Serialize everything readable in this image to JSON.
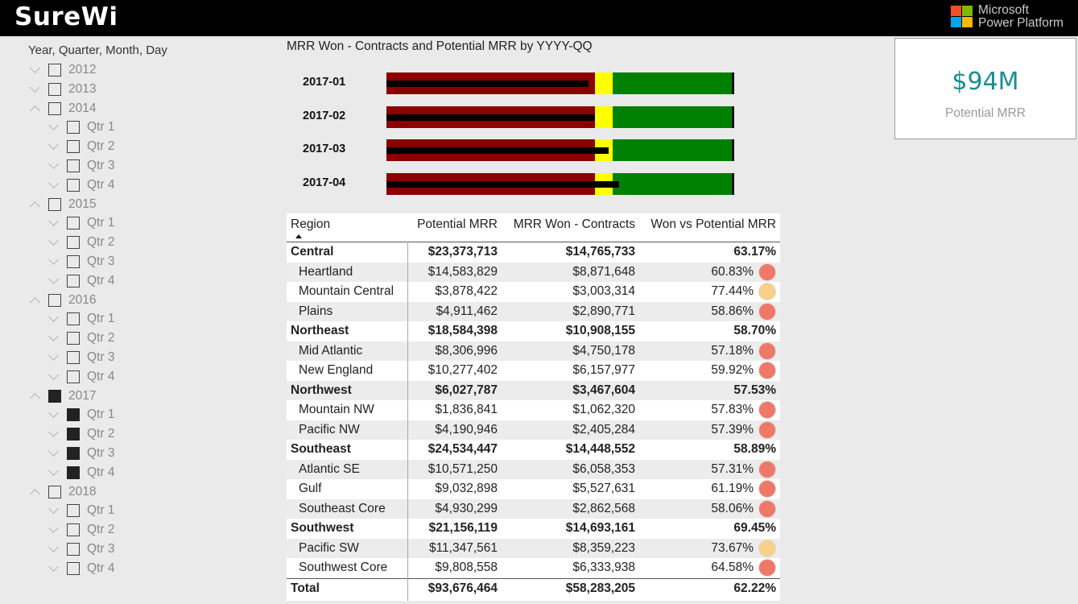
{
  "header": {
    "brand": "SureWi",
    "platform_line1": "Microsoft",
    "platform_line2": "Power Platform",
    "logo_colors": [
      "#f25022",
      "#7fba00",
      "#00a4ef",
      "#ffb900"
    ]
  },
  "slicer": {
    "title": "Year, Quarter, Month, Day",
    "items": [
      {
        "label": "2012",
        "level": 0,
        "expanded": false,
        "checked": false
      },
      {
        "label": "2013",
        "level": 0,
        "expanded": false,
        "checked": false
      },
      {
        "label": "2014",
        "level": 0,
        "expanded": true,
        "checked": false
      },
      {
        "label": "Qtr 1",
        "level": 1,
        "expanded": false,
        "checked": false
      },
      {
        "label": "Qtr 2",
        "level": 1,
        "expanded": false,
        "checked": false
      },
      {
        "label": "Qtr 3",
        "level": 1,
        "expanded": false,
        "checked": false
      },
      {
        "label": "Qtr 4",
        "level": 1,
        "expanded": false,
        "checked": false
      },
      {
        "label": "2015",
        "level": 0,
        "expanded": true,
        "checked": false
      },
      {
        "label": "Qtr 1",
        "level": 1,
        "expanded": false,
        "checked": false
      },
      {
        "label": "Qtr 2",
        "level": 1,
        "expanded": false,
        "checked": false
      },
      {
        "label": "Qtr 3",
        "level": 1,
        "expanded": false,
        "checked": false
      },
      {
        "label": "Qtr 4",
        "level": 1,
        "expanded": false,
        "checked": false
      },
      {
        "label": "2016",
        "level": 0,
        "expanded": true,
        "checked": false
      },
      {
        "label": "Qtr 1",
        "level": 1,
        "expanded": false,
        "checked": false
      },
      {
        "label": "Qtr 2",
        "level": 1,
        "expanded": false,
        "checked": false
      },
      {
        "label": "Qtr 3",
        "level": 1,
        "expanded": false,
        "checked": false
      },
      {
        "label": "Qtr 4",
        "level": 1,
        "expanded": false,
        "checked": false
      },
      {
        "label": "2017",
        "level": 0,
        "expanded": true,
        "checked": true
      },
      {
        "label": "Qtr 1",
        "level": 1,
        "expanded": false,
        "checked": true
      },
      {
        "label": "Qtr 2",
        "level": 1,
        "expanded": false,
        "checked": true
      },
      {
        "label": "Qtr 3",
        "level": 1,
        "expanded": false,
        "checked": true
      },
      {
        "label": "Qtr 4",
        "level": 1,
        "expanded": false,
        "checked": true
      },
      {
        "label": "2018",
        "level": 0,
        "expanded": true,
        "checked": false
      },
      {
        "label": "Qtr 1",
        "level": 1,
        "expanded": false,
        "checked": false
      },
      {
        "label": "Qtr 2",
        "level": 1,
        "expanded": false,
        "checked": false
      },
      {
        "label": "Qtr 3",
        "level": 1,
        "expanded": false,
        "checked": false
      },
      {
        "label": "Qtr 4",
        "level": 1,
        "expanded": false,
        "checked": false
      }
    ]
  },
  "chart_data": {
    "type": "bullet",
    "title": "MRR Won - Contracts and Potential MRR by YYYY-QQ",
    "categories": [
      "2017-01",
      "2017-02",
      "2017-03",
      "2017-04"
    ],
    "bands": [
      {
        "name": "poor",
        "color": "#8b0000",
        "end_fraction": 0.6
      },
      {
        "name": "satisfactory",
        "color": "#ffff00",
        "end_fraction": 0.65
      },
      {
        "name": "good",
        "color": "#008000",
        "end_fraction": 1.0
      }
    ],
    "target_fraction": [
      1.0,
      1.0,
      1.0,
      1.0
    ],
    "actual_fraction": [
      0.58,
      0.6,
      0.64,
      0.67
    ]
  },
  "kpi": {
    "value": "$94M",
    "label": "Potential MRR",
    "value_color": "#1a8f8f"
  },
  "table": {
    "columns": [
      "Region",
      "Potential MRR",
      "MRR Won - Contracts",
      "Won vs Potential MRR"
    ],
    "status_colors": {
      "red": "#f07868",
      "amber": "#f8d08a"
    },
    "rows": [
      {
        "region": "Central",
        "potential": "$23,373,713",
        "won": "$14,765,733",
        "pct": "63.17%",
        "type": "group",
        "status": ""
      },
      {
        "region": "Heartland",
        "potential": "$14,583,829",
        "won": "$8,871,648",
        "pct": "60.83%",
        "type": "child",
        "status": "red"
      },
      {
        "region": "Mountain Central",
        "potential": "$3,878,422",
        "won": "$3,003,314",
        "pct": "77.44%",
        "type": "child",
        "status": "amber"
      },
      {
        "region": "Plains",
        "potential": "$4,911,462",
        "won": "$2,890,771",
        "pct": "58.86%",
        "type": "child",
        "status": "red"
      },
      {
        "region": "Northeast",
        "potential": "$18,584,398",
        "won": "$10,908,155",
        "pct": "58.70%",
        "type": "group",
        "status": ""
      },
      {
        "region": "Mid Atlantic",
        "potential": "$8,306,996",
        "won": "$4,750,178",
        "pct": "57.18%",
        "type": "child",
        "status": "red"
      },
      {
        "region": "New England",
        "potential": "$10,277,402",
        "won": "$6,157,977",
        "pct": "59.92%",
        "type": "child",
        "status": "red"
      },
      {
        "region": "Northwest",
        "potential": "$6,027,787",
        "won": "$3,467,604",
        "pct": "57.53%",
        "type": "group",
        "status": ""
      },
      {
        "region": "Mountain NW",
        "potential": "$1,836,841",
        "won": "$1,062,320",
        "pct": "57.83%",
        "type": "child",
        "status": "red"
      },
      {
        "region": "Pacific NW",
        "potential": "$4,190,946",
        "won": "$2,405,284",
        "pct": "57.39%",
        "type": "child",
        "status": "red"
      },
      {
        "region": "Southeast",
        "potential": "$24,534,447",
        "won": "$14,448,552",
        "pct": "58.89%",
        "type": "group",
        "status": ""
      },
      {
        "region": "Atlantic SE",
        "potential": "$10,571,250",
        "won": "$6,058,353",
        "pct": "57.31%",
        "type": "child",
        "status": "red"
      },
      {
        "region": "Gulf",
        "potential": "$9,032,898",
        "won": "$5,527,631",
        "pct": "61.19%",
        "type": "child",
        "status": "red"
      },
      {
        "region": "Southeast Core",
        "potential": "$4,930,299",
        "won": "$2,862,568",
        "pct": "58.06%",
        "type": "child",
        "status": "red"
      },
      {
        "region": "Southwest",
        "potential": "$21,156,119",
        "won": "$14,693,161",
        "pct": "69.45%",
        "type": "group",
        "status": ""
      },
      {
        "region": "Pacific SW",
        "potential": "$11,347,561",
        "won": "$8,359,223",
        "pct": "73.67%",
        "type": "child",
        "status": "amber"
      },
      {
        "region": "Southwest Core",
        "potential": "$9,808,558",
        "won": "$6,333,938",
        "pct": "64.58%",
        "type": "child",
        "status": "red"
      },
      {
        "region": "Total",
        "potential": "$93,676,464",
        "won": "$58,283,205",
        "pct": "62.22%",
        "type": "total",
        "status": ""
      }
    ]
  }
}
